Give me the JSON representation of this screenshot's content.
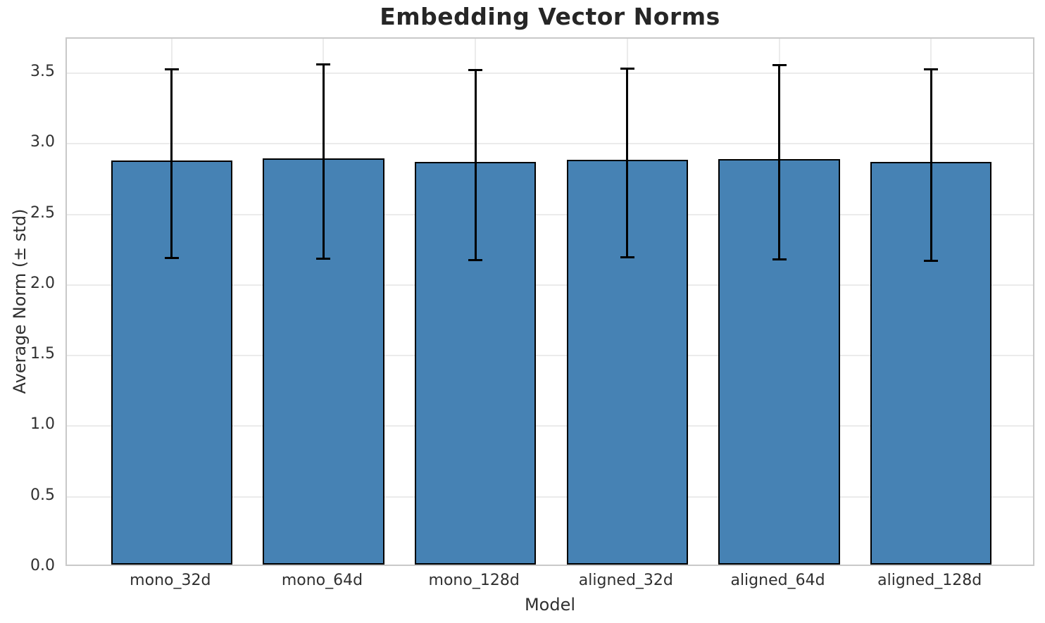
{
  "chart_data": {
    "type": "bar",
    "title": "Embedding Vector Norms",
    "xlabel": "Model",
    "ylabel": "Average Norm (± std)",
    "categories": [
      "mono_32d",
      "mono_64d",
      "mono_128d",
      "aligned_32d",
      "aligned_64d",
      "aligned_128d"
    ],
    "series": [
      {
        "name": "Average Norm",
        "values": [
          2.86,
          2.875,
          2.85,
          2.865,
          2.87,
          2.85
        ],
        "errors": [
          0.67,
          0.69,
          0.675,
          0.67,
          0.69,
          0.68
        ]
      }
    ],
    "error_bars": {
      "upper": [
        3.53,
        3.565,
        3.525,
        3.535,
        3.56,
        3.53
      ],
      "lower": [
        2.19,
        2.185,
        2.175,
        2.195,
        2.18,
        2.17
      ]
    },
    "yticks": [
      0.0,
      0.5,
      1.0,
      1.5,
      2.0,
      2.5,
      3.0,
      3.5
    ],
    "ytick_labels": [
      "0.0",
      "0.5",
      "1.0",
      "1.5",
      "2.0",
      "2.5",
      "3.0",
      "3.5"
    ],
    "ylim": [
      0,
      3.745
    ],
    "grid": true,
    "grid_axes": "both",
    "legend": false,
    "colors": {
      "bar_fill": "#4682b4",
      "bar_edge": "#000000",
      "error_bar": "#000000",
      "grid": "#ebebeb",
      "spine": "#c9c9c9",
      "text": "#303030",
      "title_text": "#262626",
      "background": "#ffffff"
    }
  }
}
